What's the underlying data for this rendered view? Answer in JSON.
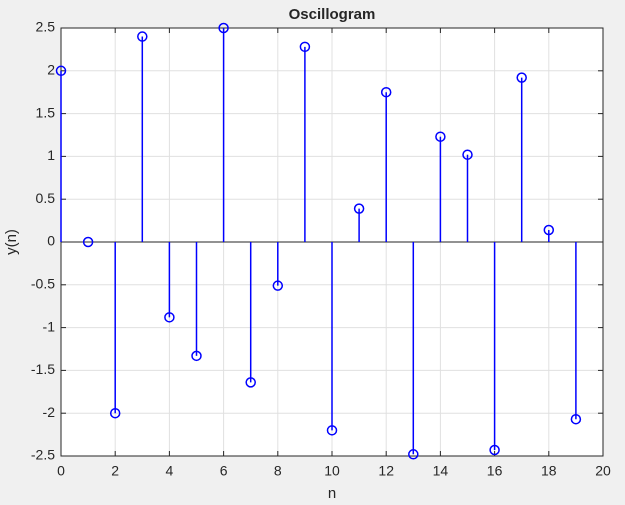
{
  "chart_data": {
    "type": "stem",
    "title": "Oscillogram",
    "x_label": "n",
    "y_label": "y(n)",
    "x": [
      0,
      1,
      2,
      3,
      4,
      5,
      6,
      7,
      8,
      9,
      10,
      11,
      12,
      13,
      14,
      15,
      16,
      17,
      18,
      19
    ],
    "series": [
      {
        "color": "#0000ff",
        "values": [
          2.0,
          0,
          -2.0,
          2.4,
          -0.88,
          -1.33,
          2.5,
          -1.64,
          -0.51,
          2.28,
          -2.2,
          0.39,
          1.75,
          -2.48,
          1.23,
          1.02,
          -2.43,
          1.92,
          0.14,
          -2.07
        ]
      }
    ],
    "xlim": [
      0,
      20
    ],
    "xticks": [
      0,
      2,
      4,
      6,
      8,
      10,
      12,
      14,
      16,
      18,
      20
    ],
    "ylim": [
      -2.5,
      2.5
    ],
    "yticks": [
      -2.5,
      -2,
      -1.5,
      -1,
      -0.5,
      0,
      0.5,
      1,
      1.5,
      2,
      2.5
    ],
    "grid": true
  }
}
